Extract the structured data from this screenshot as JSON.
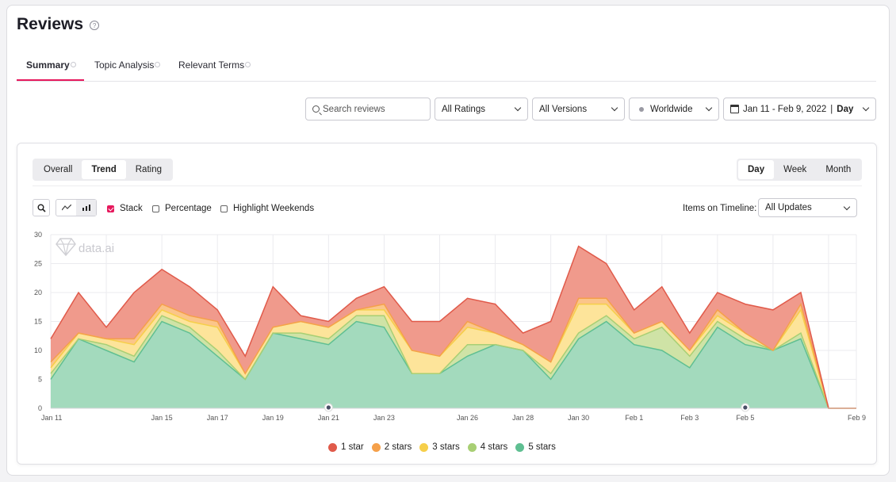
{
  "header": {
    "title": "Reviews",
    "help_icon": "?"
  },
  "tabs": [
    {
      "label": "Summary"
    },
    {
      "label": "Topic Analysis"
    },
    {
      "label": "Relevant Terms"
    }
  ],
  "filters": {
    "search_placeholder": "Search reviews",
    "ratings": "All Ratings",
    "versions": "All Versions",
    "region": "Worldwide",
    "date_range": "Jan 11 - Feb 9, 2022",
    "granularity": "Day"
  },
  "card": {
    "view_tabs": [
      "Overall",
      "Trend",
      "Rating"
    ],
    "period_tabs": [
      "Day",
      "Week",
      "Month"
    ],
    "checks": {
      "stack": "Stack",
      "percentage": "Percentage",
      "weekends": "Highlight Weekends"
    },
    "timeline_label": "Items on Timeline:",
    "timeline_value": "All Updates",
    "watermark": "data.ai"
  },
  "chart_data": {
    "type": "area",
    "stacked": true,
    "ylim": [
      0,
      30
    ],
    "yticks": [
      0,
      5,
      10,
      15,
      20,
      25,
      30
    ],
    "x": [
      "Jan 11",
      "Jan 12",
      "Jan 13",
      "Jan 14",
      "Jan 15",
      "Jan 16",
      "Jan 17",
      "Jan 18",
      "Jan 19",
      "Jan 20",
      "Jan 21",
      "Jan 22",
      "Jan 23",
      "Jan 24",
      "Jan 25",
      "Jan 26",
      "Jan 27",
      "Jan 28",
      "Jan 29",
      "Jan 30",
      "Jan 31",
      "Feb 1",
      "Feb 2",
      "Feb 3",
      "Feb 4",
      "Feb 5",
      "Feb 6",
      "Feb 7",
      "Feb 8",
      "Feb 9"
    ],
    "xtick_labels": [
      {
        "index": 0,
        "label": "Jan 11"
      },
      {
        "index": 4,
        "label": "Jan 15"
      },
      {
        "index": 6,
        "label": "Jan 17"
      },
      {
        "index": 8,
        "label": "Jan 19"
      },
      {
        "index": 10,
        "label": "Jan 21"
      },
      {
        "index": 12,
        "label": "Jan 23"
      },
      {
        "index": 15,
        "label": "Jan 26"
      },
      {
        "index": 17,
        "label": "Jan 28"
      },
      {
        "index": 19,
        "label": "Jan 30"
      },
      {
        "index": 21,
        "label": "Feb 1"
      },
      {
        "index": 23,
        "label": "Feb 3"
      },
      {
        "index": 25,
        "label": "Feb 5"
      },
      {
        "index": 29,
        "label": "Feb 9"
      }
    ],
    "timeline_markers": [
      "Jan 21",
      "Feb 5"
    ],
    "series": [
      {
        "name": "5 stars",
        "color": "#a3dabd",
        "line": "#5fbf92",
        "values": [
          5,
          12,
          10,
          8,
          15,
          13,
          9,
          5,
          13,
          12,
          11,
          15,
          14,
          6,
          6,
          9,
          11,
          10,
          5,
          12,
          15,
          11,
          10,
          7,
          14,
          11,
          10,
          12,
          0,
          0
        ]
      },
      {
        "name": "4 stars",
        "color": "#cfe3a6",
        "line": "#a8cf74",
        "values": [
          1,
          0,
          1,
          1,
          1,
          1,
          1,
          0,
          0,
          1,
          1,
          1,
          2,
          0,
          0,
          2,
          0,
          0,
          1,
          1,
          1,
          1,
          4,
          2,
          1,
          1,
          0,
          1,
          0,
          0
        ]
      },
      {
        "name": "3 stars",
        "color": "#fde49a",
        "line": "#f6cf4a",
        "values": [
          1,
          1,
          1,
          2,
          1,
          1,
          4,
          1,
          1,
          2,
          2,
          1,
          1,
          4,
          3,
          3,
          2,
          1,
          2,
          5,
          2,
          1,
          1,
          1,
          1,
          1,
          0,
          4,
          0,
          0
        ]
      },
      {
        "name": "2 stars",
        "color": "#fbc58a",
        "line": "#f5a04a",
        "values": [
          1,
          0,
          0,
          1,
          1,
          1,
          1,
          0,
          0,
          0,
          0,
          0,
          1,
          0,
          0,
          1,
          0,
          0,
          0,
          1,
          1,
          0,
          0,
          0,
          1,
          0,
          0,
          1,
          0,
          0
        ]
      },
      {
        "name": "1 star",
        "color": "#f09a8c",
        "line": "#e05a4a",
        "values": [
          4,
          7,
          2,
          8,
          6,
          5,
          2,
          3,
          7,
          1,
          1,
          2,
          3,
          5,
          6,
          4,
          5,
          2,
          7,
          9,
          6,
          4,
          6,
          3,
          3,
          5,
          7,
          2,
          0,
          0
        ]
      }
    ],
    "legend_order": [
      "1 star",
      "2 stars",
      "3 stars",
      "4 stars",
      "5 stars"
    ],
    "legend_placement": "bottom"
  }
}
